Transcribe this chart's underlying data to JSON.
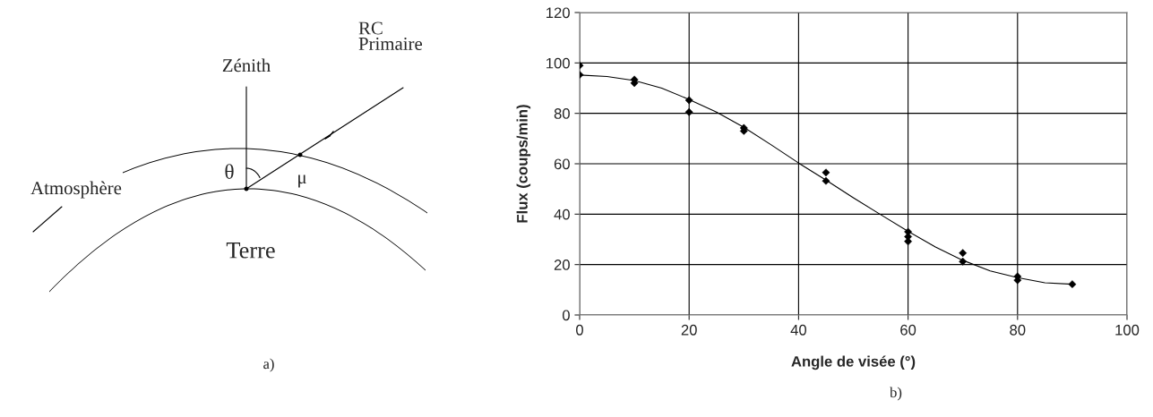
{
  "chart_data": [
    {
      "type": "other",
      "annotations": [
        "Zénith",
        "RC\nPrimaire",
        "θ",
        "μ",
        "Atmosphère",
        "Terre",
        "a)"
      ]
    },
    {
      "type": "scatter",
      "xlabel": "Angle de visée (°)",
      "ylabel": "Flux (coups/min)",
      "annotations": [
        "b)"
      ],
      "xlim": [
        0,
        100
      ],
      "xticks": [
        0,
        20,
        40,
        60,
        80,
        100
      ],
      "ylim": [
        0,
        120
      ],
      "yticks": [
        0,
        20,
        40,
        60,
        80,
        100,
        120
      ],
      "grid": true,
      "legend": false,
      "series": [
        {
          "type": "scatter",
          "color": "#000000",
          "marker": "diamond",
          "x": [
            0,
            0,
            10,
            10,
            20,
            20,
            30,
            30,
            45,
            45,
            60,
            60,
            60,
            70,
            70,
            80,
            80,
            90
          ],
          "values": [
            99,
            95.3,
            93.4,
            92,
            85.2,
            80.5,
            74.2,
            73,
            56.5,
            53.2,
            33,
            31.1,
            29.2,
            24.6,
            21.2,
            15.3,
            13.8,
            12.2
          ]
        },
        {
          "type": "line",
          "color": "#000000",
          "marker": "none",
          "x": [
            0,
            5,
            10,
            15,
            20,
            25,
            30,
            35,
            40,
            45,
            50,
            55,
            60,
            65,
            70,
            75,
            80,
            85,
            90
          ],
          "values": [
            95.2,
            94.6,
            93,
            90,
            85.5,
            80.5,
            74.5,
            67.5,
            60.3,
            53.5,
            46.5,
            39.8,
            33.2,
            27,
            21.7,
            17.5,
            14.8,
            12.8,
            12.2
          ]
        }
      ]
    }
  ]
}
